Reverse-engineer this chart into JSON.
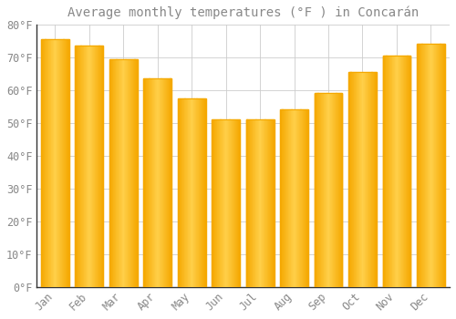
{
  "title": "Average monthly temperatures (°F ) in Concarán",
  "months": [
    "Jan",
    "Feb",
    "Mar",
    "Apr",
    "May",
    "Jun",
    "Jul",
    "Aug",
    "Sep",
    "Oct",
    "Nov",
    "Dec"
  ],
  "values": [
    75.5,
    73.5,
    69.5,
    63.5,
    57.5,
    51.0,
    51.0,
    54.0,
    59.0,
    65.5,
    70.5,
    74.0
  ],
  "bar_color_center": "#FFD04A",
  "bar_color_edge": "#F5A800",
  "background_color": "#FFFFFF",
  "grid_color": "#CCCCCC",
  "text_color": "#888888",
  "spine_color": "#333333",
  "ylim": [
    0,
    80
  ],
  "yticks": [
    0,
    10,
    20,
    30,
    40,
    50,
    60,
    70,
    80
  ],
  "title_fontsize": 10,
  "tick_fontsize": 8.5,
  "figsize": [
    5.0,
    3.5
  ],
  "dpi": 100
}
